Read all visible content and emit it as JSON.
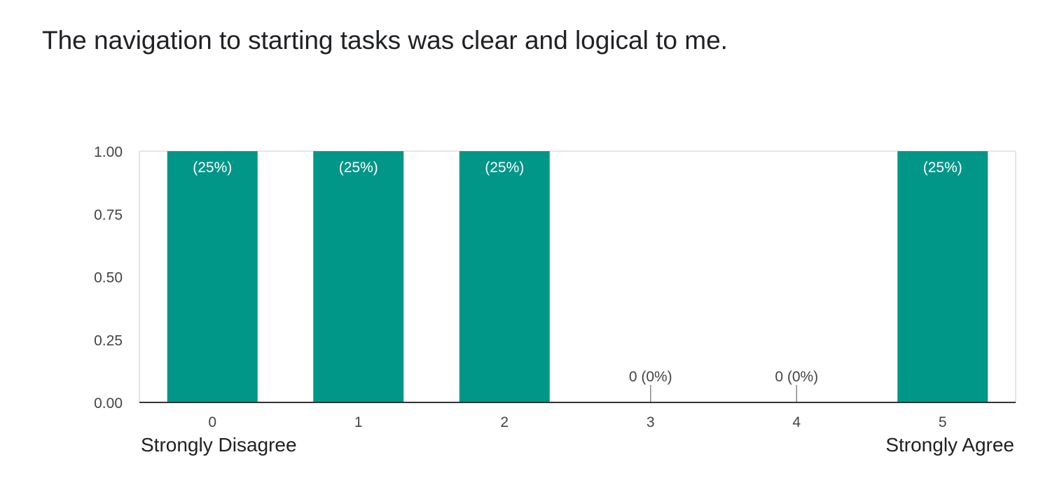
{
  "question": {
    "title": "The navigation to starting tasks was clear and logical to me."
  },
  "scale": {
    "low_label": "Strongly Disagree",
    "high_label": "Strongly Agree"
  },
  "colors": {
    "bar": "#009688",
    "bar_label_inside": "#ffffff",
    "bar_label_outside": "#444444",
    "axis": "#333333",
    "grid": "#e6e6e6",
    "tick_text": "#444444"
  },
  "chart_data": {
    "type": "bar",
    "categories": [
      "0",
      "1",
      "2",
      "3",
      "4",
      "5"
    ],
    "values": [
      1,
      1,
      1,
      0,
      0,
      1
    ],
    "labels": [
      "(25%)",
      "(25%)",
      "(25%)",
      "0 (0%)",
      "0 (0%)",
      "(25%)"
    ],
    "yticks": [
      "0.00",
      "0.25",
      "0.50",
      "0.75",
      "1.00"
    ],
    "ylim": [
      0,
      1
    ],
    "xlabel": "",
    "ylabel": "",
    "grid": false,
    "legend": "none"
  }
}
